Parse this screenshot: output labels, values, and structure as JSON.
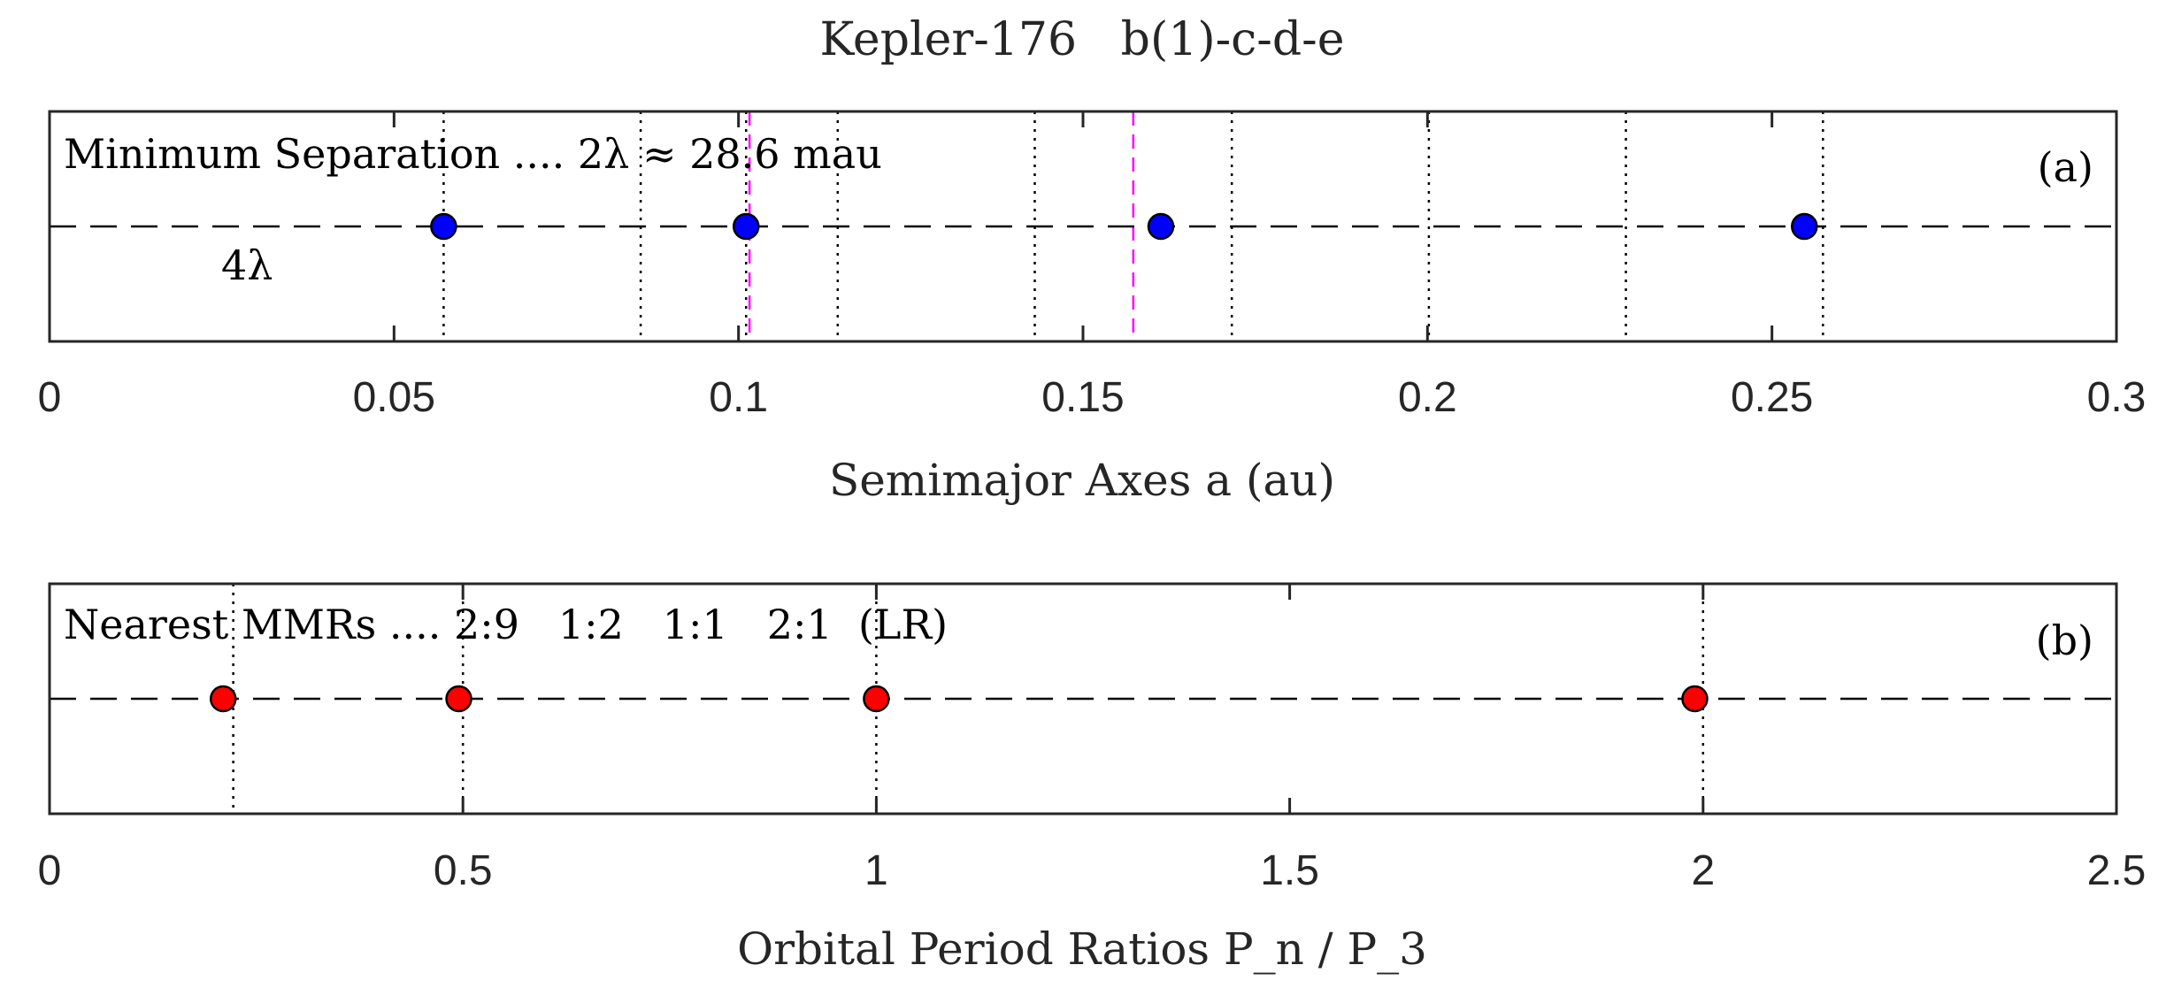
{
  "chart_data": {
    "title": "Kepler-176   b(1)-c-d-e",
    "panels": [
      {
        "type": "scatter",
        "panel_label": "(a)",
        "annotation": "Minimum Separation .... 2λ ≈ 28.6 mau",
        "annotation2": "4λ",
        "xlabel": "Semimajor Axes a (au)",
        "xlim": [
          0,
          0.3
        ],
        "xticks": [
          0,
          0.05,
          0.1,
          0.15,
          0.2,
          0.25,
          0.3
        ],
        "xtick_labels": [
          "0",
          "0.05",
          "0.1",
          "0.15",
          "0.2",
          "0.25",
          "0.3"
        ],
        "points_x": [
          0.0572,
          0.1011,
          0.1613,
          0.2547
        ],
        "marker_color": "#0000ff",
        "dotted_lines_x": [
          0.0572,
          0.0858,
          0.1011,
          0.1144,
          0.143,
          0.1716,
          0.2002,
          0.2288,
          0.2574
        ],
        "dashed_magenta_x": [
          0.1016,
          0.1573
        ],
        "magenta_color": "#ff00ff",
        "grid": false
      },
      {
        "type": "scatter",
        "panel_label": "(b)",
        "annotation": "Nearest MMRs .... 2:9   1:2   1:1   2:1  (LR)",
        "xlabel": "Orbital Period Ratios P_n / P_3",
        "xlim": [
          0,
          2.5
        ],
        "xticks": [
          0,
          0.5,
          1,
          1.5,
          2,
          2.5
        ],
        "xtick_labels": [
          "0",
          "0.5",
          "1",
          "1.5",
          "2",
          "2.5"
        ],
        "points_x": [
          0.21,
          0.495,
          1.0,
          1.99
        ],
        "marker_color": "#ff0000",
        "dotted_lines_x": [
          0.2222,
          0.5,
          1.0,
          2.0
        ],
        "grid": false
      }
    ]
  }
}
